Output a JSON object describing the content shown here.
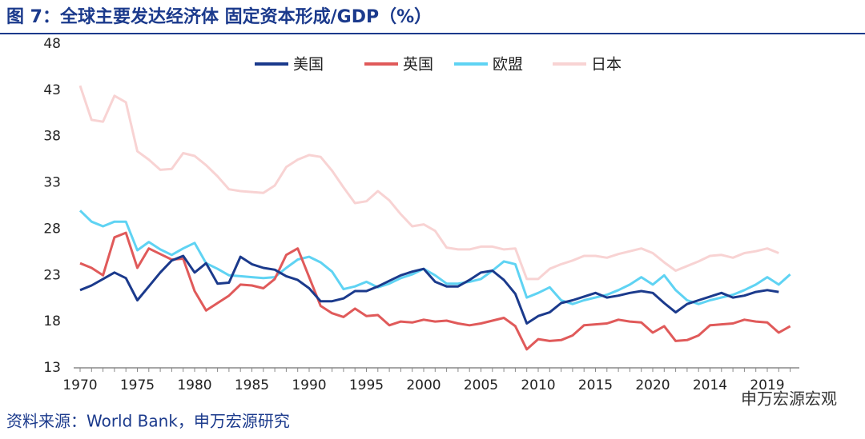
{
  "chart_data": {
    "type": "line",
    "title": "图 7：全球主要发达经济体  固定资本形成/GDP（%）",
    "source": "资料来源：World Bank，申万宏源研究",
    "watermark": "申万宏源宏观",
    "categories": [
      "1970",
      null,
      null,
      null,
      null,
      "1975",
      null,
      null,
      null,
      null,
      "1980",
      null,
      null,
      null,
      null,
      "1985",
      null,
      null,
      null,
      null,
      "1990",
      null,
      null,
      null,
      null,
      "1995",
      null,
      null,
      null,
      null,
      "2000",
      null,
      null,
      null,
      null,
      "2005",
      null,
      null,
      null,
      null,
      "2010",
      null,
      null,
      null,
      null,
      "2015",
      null,
      null,
      null,
      null,
      "2020",
      null,
      null,
      null,
      null,
      "2014",
      null,
      null,
      null,
      null,
      "2019",
      null,
      null
    ],
    "series": [
      {
        "name": "美国",
        "color": "#1b3a8c",
        "values": [
          21.4,
          21.9,
          22.6,
          23.3,
          22.7,
          20.3,
          21.8,
          23.3,
          24.6,
          25.1,
          23.3,
          24.3,
          22.1,
          22.2,
          25.0,
          24.2,
          23.8,
          23.6,
          22.9,
          22.5,
          21.6,
          20.2,
          20.2,
          20.5,
          21.3,
          21.3,
          21.8,
          22.4,
          23.0,
          23.4,
          23.7,
          22.3,
          21.8,
          21.8,
          22.5,
          23.3,
          23.5,
          22.5,
          21.0,
          17.8,
          18.6,
          19.0,
          20.0,
          20.3,
          20.7,
          21.1,
          20.6,
          20.8,
          21.1,
          21.3,
          21.1,
          20.0,
          19.0,
          19.9,
          20.3,
          20.7,
          21.1,
          20.6,
          20.8,
          21.2,
          21.4,
          21.2,
          null
        ]
      },
      {
        "name": "英国",
        "color": "#e05a5a",
        "values": [
          24.3,
          23.8,
          23.0,
          27.1,
          27.6,
          23.8,
          25.9,
          25.3,
          24.7,
          24.8,
          21.3,
          19.2,
          20.0,
          20.8,
          22.0,
          21.9,
          21.6,
          22.6,
          25.2,
          25.9,
          22.8,
          19.7,
          18.9,
          18.5,
          19.4,
          18.6,
          18.7,
          17.6,
          18.0,
          17.9,
          18.2,
          18.0,
          18.1,
          17.8,
          17.6,
          17.8,
          18.1,
          18.4,
          17.5,
          15.0,
          16.1,
          15.9,
          16.0,
          16.5,
          17.6,
          17.7,
          17.8,
          18.2,
          18.0,
          17.9,
          16.8,
          17.5,
          15.9,
          16.0,
          16.5,
          17.6,
          17.7,
          17.8,
          18.2,
          18.0,
          17.9,
          16.8,
          17.5
        ]
      },
      {
        "name": "欧盟",
        "color": "#5fd3f3",
        "values": [
          30.0,
          28.8,
          28.3,
          28.8,
          28.8,
          25.7,
          26.6,
          25.8,
          25.2,
          25.9,
          26.5,
          24.3,
          23.7,
          23.0,
          22.9,
          22.8,
          22.7,
          22.8,
          23.8,
          24.7,
          25.0,
          24.4,
          23.4,
          21.5,
          21.8,
          22.3,
          21.7,
          22.1,
          22.7,
          23.1,
          23.7,
          23.0,
          22.1,
          22.1,
          22.3,
          22.6,
          23.5,
          24.5,
          24.2,
          20.6,
          21.1,
          21.7,
          20.3,
          19.9,
          20.3,
          20.6,
          20.9,
          21.4,
          22.0,
          22.8,
          22.0,
          23.0,
          21.4,
          20.3,
          19.9,
          20.3,
          20.6,
          20.9,
          21.4,
          22.0,
          22.8,
          22.0,
          23.1
        ]
      },
      {
        "name": "日本",
        "color": "#f8d3d3",
        "values": [
          43.5,
          39.8,
          39.6,
          42.4,
          41.7,
          36.4,
          35.5,
          34.4,
          34.5,
          36.2,
          35.9,
          34.9,
          33.7,
          32.3,
          32.1,
          32.0,
          31.9,
          32.7,
          34.7,
          35.5,
          36.0,
          35.8,
          34.3,
          32.5,
          30.8,
          31.0,
          32.1,
          31.1,
          29.6,
          28.3,
          28.5,
          27.8,
          26.0,
          25.8,
          25.8,
          26.1,
          26.1,
          25.8,
          25.9,
          22.6,
          22.6,
          23.7,
          24.2,
          24.6,
          25.1,
          25.1,
          24.9,
          25.3,
          25.6,
          25.9,
          25.4,
          24.4,
          23.5,
          24.0,
          24.5,
          25.1,
          25.2,
          24.9,
          25.4,
          25.6,
          25.9,
          25.4,
          null
        ]
      }
    ],
    "ylim": [
      13,
      48
    ],
    "yticks": [
      13,
      18,
      23,
      28,
      33,
      38,
      43,
      48
    ],
    "legend": "top"
  }
}
